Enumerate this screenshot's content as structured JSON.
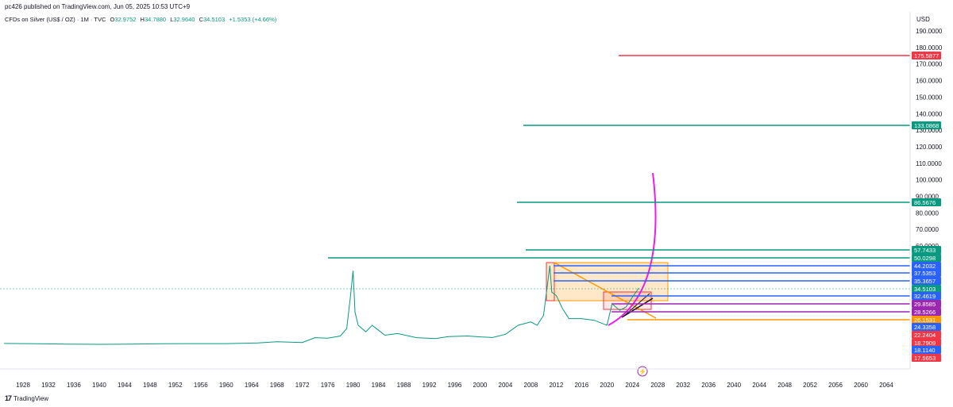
{
  "header": {
    "published_text": "pc426 published on TradingView.com, Jun 05, 2025 10:53 UTC+9"
  },
  "symbol": {
    "name": "CFDs on Silver (US$ / OZ) · 1M · TVC",
    "open_label": "O",
    "open": "32.9752",
    "high_label": "H",
    "high": "34.7880",
    "low_label": "L",
    "low": "32.9640",
    "close_label": "C",
    "close": "34.5103",
    "change": "+1.5353 (+4.66%)"
  },
  "currency": "USD",
  "footer": {
    "brand": "TradingView"
  },
  "chart_data": {
    "type": "line",
    "xlabel": "",
    "ylabel": "",
    "x_range": [
      1925,
      2068
    ],
    "y_range": [
      0,
      195
    ],
    "x_ticks": [
      1928,
      1932,
      1936,
      1940,
      1944,
      1948,
      1952,
      1956,
      1960,
      1964,
      1968,
      1972,
      1976,
      1980,
      1984,
      1988,
      1992,
      1996,
      2000,
      2004,
      2008,
      2012,
      2016,
      2020,
      2024,
      2028,
      2032,
      2036,
      2040,
      2044,
      2048,
      2052,
      2056,
      2060,
      2064
    ],
    "y_ticks": [
      190,
      180,
      170,
      160,
      150,
      140,
      130,
      120,
      110,
      100,
      90,
      80,
      70,
      60,
      50,
      40,
      30
    ],
    "series": [
      {
        "x": [
          1925,
          1930,
          1935,
          1940,
          1945,
          1950,
          1955,
          1960,
          1965,
          1968,
          1970,
          1972,
          1974,
          1976,
          1978,
          1979,
          1979.6,
          1980,
          1980.3,
          1980.8,
          1982,
          1983,
          1984,
          1985,
          1987,
          1990,
          1993,
          1995,
          1998,
          2000,
          2002,
          2004,
          2006,
          2008,
          2009,
          2010,
          2011,
          2011.3,
          2012,
          2013,
          2014,
          2016,
          2018,
          2020,
          2020.8,
          2022,
          2023,
          2024,
          2025
        ],
        "y": [
          1.0,
          0.8,
          0.6,
          0.5,
          0.6,
          0.8,
          0.9,
          0.9,
          1.3,
          2.0,
          1.8,
          1.6,
          4.5,
          4.2,
          5.5,
          10,
          30,
          45,
          20,
          12,
          8,
          12,
          9,
          6,
          7,
          4.5,
          4.0,
          5.2,
          5.5,
          5.0,
          4.6,
          6.5,
          12,
          14,
          12,
          18,
          48,
          32,
          30,
          22,
          16,
          16,
          15,
          12,
          25,
          21,
          23,
          29,
          34.5
        ]
      }
    ],
    "price_levels": [
      {
        "value": "175.5877",
        "color": "#f23645"
      },
      {
        "value": "133.0868",
        "color": "#089981"
      },
      {
        "value": "86.5676",
        "color": "#089981"
      },
      {
        "value": "57.7433",
        "color": "#089981"
      },
      {
        "value": "50.0298",
        "color": "#089981"
      },
      {
        "value": "44.2032",
        "color": "#2962ff"
      },
      {
        "value": "37.5353",
        "color": "#2962ff"
      },
      {
        "value": "35.3657",
        "color": "#2962ff"
      },
      {
        "value": "34.5103",
        "color": "#089981"
      },
      {
        "value": "32.4619",
        "color": "#2962ff"
      },
      {
        "value": "29.8585",
        "color": "#9c27b0"
      },
      {
        "value": "28.5266",
        "color": "#9c27b0"
      },
      {
        "value": "26.1531",
        "color": "#ff9800"
      },
      {
        "value": "24.3358",
        "color": "#2962ff"
      },
      {
        "value": "22.2404",
        "color": "#f23645"
      },
      {
        "value": "18.7909",
        "color": "#f23645"
      },
      {
        "value": "18.1140",
        "color": "#2962ff"
      },
      {
        "value": "17.5653",
        "color": "#f23645"
      }
    ]
  }
}
